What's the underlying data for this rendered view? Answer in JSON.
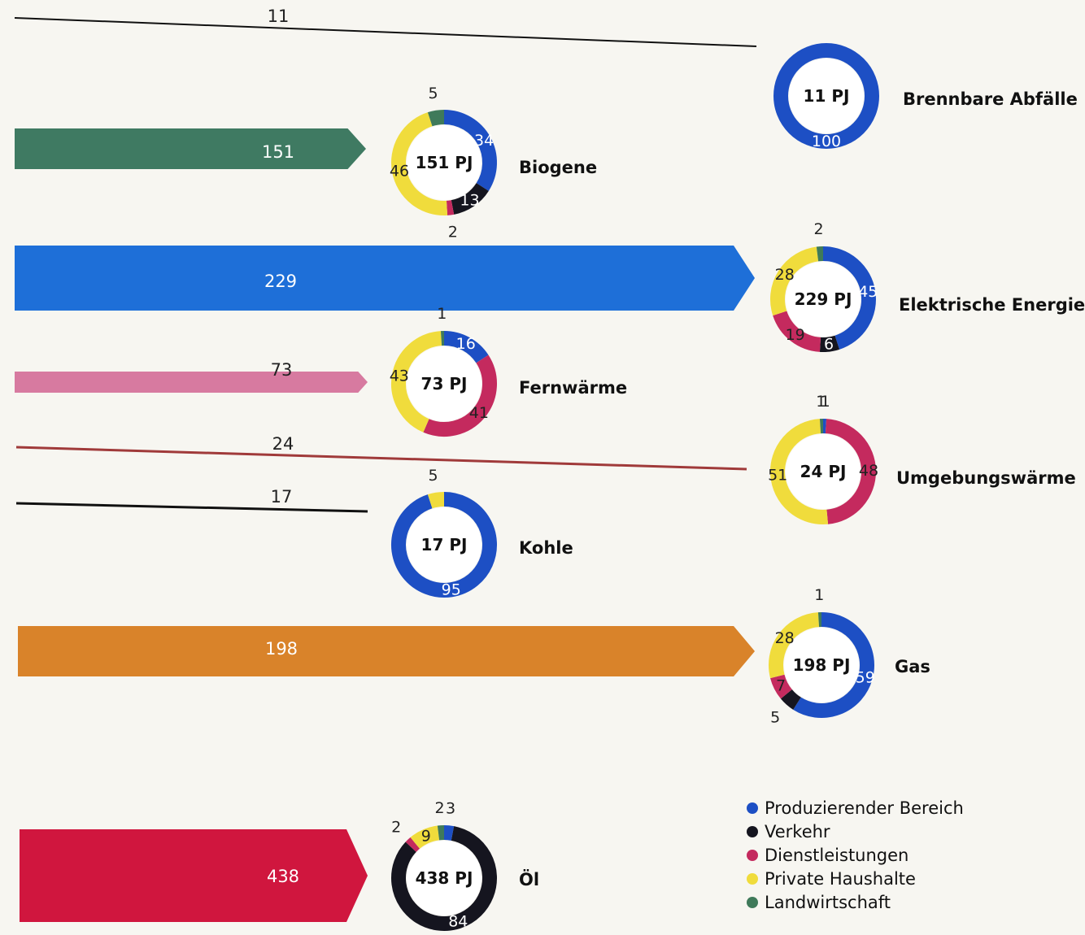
{
  "chart_data": {
    "type": "donut",
    "unit": "PJ",
    "legend_position": "bottom-right",
    "sectors": [
      {
        "name": "Produzierender Bereich",
        "color": "#1d4fc4"
      },
      {
        "name": "Verkehr",
        "color": "#15151f"
      },
      {
        "name": "Dienstleistungen",
        "color": "#c42a5e"
      },
      {
        "name": "Private Haushalte",
        "color": "#f0dc3c"
      },
      {
        "name": "Landwirtschaft",
        "color": "#3f7a5a"
      }
    ],
    "carriers": [
      {
        "name": "Brennbare Abfälle",
        "value": 11,
        "center_label": "11 PJ",
        "flow_label": "11",
        "flow_color": "#111111",
        "flow_style": "line",
        "shares": [
          100,
          0,
          0,
          0,
          0
        ],
        "share_labels": [
          "100",
          "",
          "",
          "",
          ""
        ]
      },
      {
        "name": "Biogene",
        "value": 151,
        "center_label": "151 PJ",
        "flow_label": "151",
        "flow_color": "#3f7a62",
        "flow_style": "arrow",
        "shares": [
          34,
          13,
          2,
          46,
          5
        ],
        "share_labels": [
          "34",
          "13",
          "2",
          "46",
          "5"
        ]
      },
      {
        "name": "Elektrische Energie",
        "value": 229,
        "center_label": "229 PJ",
        "flow_label": "229",
        "flow_color": "#1e6fd8",
        "flow_style": "arrow",
        "shares": [
          45,
          6,
          19,
          28,
          2
        ],
        "share_labels": [
          "45",
          "6",
          "19",
          "28",
          "2"
        ]
      },
      {
        "name": "Fernwärme",
        "value": 73,
        "center_label": "73 PJ",
        "flow_label": "73",
        "flow_color": "#d77aa0",
        "flow_style": "arrow",
        "shares": [
          16,
          0,
          41,
          43,
          1
        ],
        "share_labels": [
          "16",
          "",
          "41",
          "43",
          "1"
        ]
      },
      {
        "name": "Umgebungswärme",
        "value": 24,
        "center_label": "24 PJ",
        "flow_label": "24",
        "flow_color": "#a03a3a",
        "flow_style": "line",
        "shares": [
          1,
          0,
          48,
          51,
          1
        ],
        "share_labels": [
          "1",
          "",
          "48",
          "51",
          "1"
        ]
      },
      {
        "name": "Kohle",
        "value": 17,
        "center_label": "17 PJ",
        "flow_label": "17",
        "flow_color": "#111111",
        "flow_style": "line",
        "shares": [
          95,
          0,
          0,
          5,
          0
        ],
        "share_labels": [
          "95",
          "",
          "",
          "5",
          ""
        ]
      },
      {
        "name": "Gas",
        "value": 198,
        "center_label": "198 PJ",
        "flow_label": "198",
        "flow_color": "#d9832a",
        "flow_style": "arrow",
        "shares": [
          59,
          5,
          7,
          28,
          1
        ],
        "share_labels": [
          "59",
          "5",
          "7",
          "28",
          "1"
        ]
      },
      {
        "name": "Öl",
        "value": 438,
        "center_label": "438 PJ",
        "flow_label": "438",
        "flow_color": "#d0163e",
        "flow_style": "arrow",
        "shares": [
          3,
          84,
          2,
          9,
          2
        ],
        "share_labels": [
          "3",
          "84",
          "2",
          "9",
          "2"
        ]
      }
    ]
  }
}
